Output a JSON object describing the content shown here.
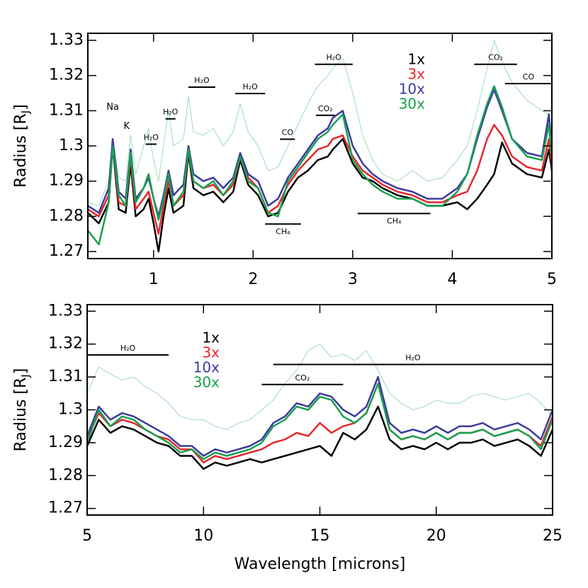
{
  "chart_data": [
    {
      "type": "line",
      "ylabel_parts": [
        "Radius [R",
        "J",
        "]"
      ],
      "xlim": [
        0.34,
        5
      ],
      "xticks": [
        1,
        2,
        3,
        4,
        5
      ],
      "ylim": [
        1.268,
        1.332
      ],
      "yticks": [
        1.27,
        1.28,
        1.29,
        1.3,
        1.31,
        1.32,
        1.33
      ],
      "x": [
        0.34,
        0.45,
        0.55,
        0.59,
        0.65,
        0.72,
        0.77,
        0.82,
        0.9,
        0.95,
        1.0,
        1.05,
        1.1,
        1.15,
        1.2,
        1.3,
        1.35,
        1.4,
        1.5,
        1.6,
        1.7,
        1.8,
        1.87,
        1.95,
        2.05,
        2.15,
        2.25,
        2.35,
        2.45,
        2.55,
        2.65,
        2.75,
        2.8,
        2.9,
        3.0,
        3.1,
        3.2,
        3.3,
        3.45,
        3.6,
        3.75,
        3.9,
        4.05,
        4.15,
        4.25,
        4.35,
        4.42,
        4.5,
        4.6,
        4.75,
        4.9,
        4.97,
        5.0
      ],
      "series": [
        {
          "color": "#86d3a6",
          "width": 0.8,
          "values": [
            1.284,
            1.283,
            1.29,
            1.302,
            1.291,
            1.29,
            1.303,
            1.292,
            1.3,
            1.305,
            1.296,
            1.29,
            1.3,
            1.31,
            1.3,
            1.302,
            1.314,
            1.304,
            1.303,
            1.305,
            1.3,
            1.304,
            1.312,
            1.304,
            1.3,
            1.293,
            1.294,
            1.3,
            1.306,
            1.312,
            1.317,
            1.32,
            1.322,
            1.325,
            1.315,
            1.303,
            1.296,
            1.292,
            1.29,
            1.293,
            1.29,
            1.291,
            1.296,
            1.3,
            1.31,
            1.322,
            1.33,
            1.324,
            1.318,
            1.313,
            1.31,
            1.309,
            1.303
          ]
        },
        {
          "name": "1x",
          "color": "#000000",
          "width": 2.5,
          "values": [
            1.281,
            1.278,
            1.284,
            1.3,
            1.282,
            1.281,
            1.295,
            1.28,
            1.282,
            1.285,
            1.278,
            1.27,
            1.28,
            1.288,
            1.281,
            1.283,
            1.298,
            1.288,
            1.286,
            1.287,
            1.284,
            1.287,
            1.296,
            1.289,
            1.286,
            1.28,
            1.281,
            1.287,
            1.291,
            1.293,
            1.296,
            1.297,
            1.299,
            1.302,
            1.295,
            1.291,
            1.29,
            1.288,
            1.286,
            1.285,
            1.283,
            1.283,
            1.284,
            1.282,
            1.285,
            1.289,
            1.292,
            1.301,
            1.295,
            1.292,
            1.291,
            1.299,
            1.293
          ]
        },
        {
          "name": "3x",
          "color": "#e8262c",
          "width": 2.5,
          "values": [
            1.282,
            1.28,
            1.286,
            1.301,
            1.284,
            1.283,
            1.297,
            1.282,
            1.285,
            1.287,
            1.281,
            1.275,
            1.283,
            1.29,
            1.283,
            1.286,
            1.299,
            1.29,
            1.288,
            1.289,
            1.286,
            1.289,
            1.297,
            1.291,
            1.288,
            1.281,
            1.283,
            1.289,
            1.293,
            1.296,
            1.299,
            1.3,
            1.302,
            1.303,
            1.297,
            1.293,
            1.291,
            1.289,
            1.287,
            1.286,
            1.284,
            1.284,
            1.286,
            1.287,
            1.293,
            1.302,
            1.306,
            1.303,
            1.297,
            1.294,
            1.293,
            1.302,
            1.295
          ]
        },
        {
          "name": "10x",
          "color": "#3b3b9e",
          "width": 2.5,
          "values": [
            1.283,
            1.281,
            1.288,
            1.302,
            1.287,
            1.285,
            1.299,
            1.285,
            1.288,
            1.291,
            1.285,
            1.28,
            1.286,
            1.293,
            1.286,
            1.289,
            1.3,
            1.292,
            1.29,
            1.291,
            1.288,
            1.291,
            1.298,
            1.292,
            1.29,
            1.283,
            1.285,
            1.291,
            1.295,
            1.299,
            1.303,
            1.305,
            1.308,
            1.31,
            1.3,
            1.295,
            1.292,
            1.29,
            1.288,
            1.287,
            1.285,
            1.285,
            1.288,
            1.292,
            1.302,
            1.311,
            1.316,
            1.31,
            1.302,
            1.298,
            1.297,
            1.309,
            1.299
          ]
        },
        {
          "name": "30x",
          "color": "#19a04f",
          "width": 2.5,
          "values": [
            1.276,
            1.272,
            1.284,
            1.3,
            1.286,
            1.283,
            1.298,
            1.284,
            1.288,
            1.292,
            1.285,
            1.279,
            1.285,
            1.292,
            1.283,
            1.287,
            1.299,
            1.29,
            1.288,
            1.29,
            1.286,
            1.29,
            1.297,
            1.29,
            1.288,
            1.281,
            1.28,
            1.29,
            1.294,
            1.298,
            1.302,
            1.304,
            1.306,
            1.309,
            1.296,
            1.292,
            1.289,
            1.287,
            1.285,
            1.285,
            1.283,
            1.283,
            1.287,
            1.292,
            1.303,
            1.312,
            1.317,
            1.311,
            1.302,
            1.297,
            1.296,
            1.306,
            1.297
          ]
        }
      ],
      "annotations": [
        {
          "label": "Na",
          "x": 0.59,
          "y": 1.311
        },
        {
          "label": "K",
          "x": 0.73,
          "y": 1.3055
        },
        {
          "label": "H₂O",
          "x_range": [
            0.92,
            1.03
          ],
          "y": 1.3005
        },
        {
          "label": "H₂O",
          "x_range": [
            1.12,
            1.22
          ],
          "y": 1.3077
        },
        {
          "label": "H₂O",
          "x_range": [
            1.35,
            1.62
          ],
          "y": 1.3167
        },
        {
          "label": "H₂O",
          "x_range": [
            1.82,
            2.12
          ],
          "y": 1.3149
        },
        {
          "label": "CO",
          "x_range": [
            2.27,
            2.42
          ],
          "y": 1.3019
        },
        {
          "label": "CH₄",
          "x_range": [
            2.12,
            2.48
          ],
          "y": 1.2778,
          "label_below": true
        },
        {
          "label": "CO₂",
          "x_range": [
            2.63,
            2.82
          ],
          "y": 1.3087
        },
        {
          "label": "H₂O",
          "x_range": [
            2.62,
            3.0
          ],
          "y": 1.3232
        },
        {
          "label": "CH₄",
          "x_range": [
            3.05,
            3.78
          ],
          "y": 1.2808,
          "label_below": true
        },
        {
          "label": "CO₂",
          "x_range": [
            4.22,
            4.65
          ],
          "y": 1.3232
        },
        {
          "label": "CO",
          "x_range": [
            4.53,
            5.0
          ],
          "y": 1.3177
        }
      ]
    },
    {
      "type": "line",
      "ylabel_parts": [
        "Radius [R",
        "J",
        "]"
      ],
      "xlabel": "Wavelength [microns]",
      "xlim": [
        5,
        25
      ],
      "xticks": [
        5,
        10,
        15,
        20,
        25
      ],
      "ylim": [
        1.268,
        1.332
      ],
      "yticks": [
        1.27,
        1.28,
        1.29,
        1.3,
        1.31,
        1.32,
        1.33
      ],
      "x": [
        5,
        5.5,
        6,
        6.5,
        7,
        7.5,
        8,
        8.5,
        9,
        9.5,
        10,
        10.5,
        11,
        11.5,
        12,
        12.5,
        13,
        13.5,
        14,
        14.5,
        15,
        15.5,
        16,
        16.5,
        17,
        17.5,
        18,
        18.5,
        19,
        19.5,
        20,
        20.5,
        21,
        21.5,
        22,
        22.5,
        23,
        23.5,
        24,
        24.5,
        25
      ],
      "series": [
        {
          "color": "#86d3a6",
          "width": 0.8,
          "values": [
            1.305,
            1.313,
            1.311,
            1.309,
            1.31,
            1.307,
            1.305,
            1.302,
            1.298,
            1.297,
            1.297,
            1.295,
            1.294,
            1.296,
            1.297,
            1.3,
            1.303,
            1.308,
            1.312,
            1.318,
            1.32,
            1.316,
            1.317,
            1.315,
            1.318,
            1.312,
            1.305,
            1.302,
            1.3,
            1.301,
            1.303,
            1.302,
            1.302,
            1.304,
            1.305,
            1.304,
            1.303,
            1.304,
            1.305,
            1.302,
            1.298
          ]
        },
        {
          "name": "1x",
          "color": "#000000",
          "width": 2.5,
          "values": [
            1.289,
            1.297,
            1.293,
            1.295,
            1.294,
            1.292,
            1.29,
            1.289,
            1.286,
            1.286,
            1.282,
            1.284,
            1.283,
            1.284,
            1.285,
            1.284,
            1.285,
            1.286,
            1.287,
            1.288,
            1.289,
            1.286,
            1.293,
            1.291,
            1.294,
            1.301,
            1.291,
            1.288,
            1.289,
            1.288,
            1.29,
            1.288,
            1.29,
            1.29,
            1.291,
            1.289,
            1.29,
            1.291,
            1.289,
            1.286,
            1.294
          ]
        },
        {
          "name": "3x",
          "color": "#e8262c",
          "width": 2.5,
          "values": [
            1.291,
            1.299,
            1.295,
            1.297,
            1.296,
            1.294,
            1.292,
            1.291,
            1.288,
            1.288,
            1.284,
            1.286,
            1.285,
            1.286,
            1.287,
            1.288,
            1.29,
            1.291,
            1.293,
            1.292,
            1.296,
            1.293,
            1.295,
            1.296,
            1.299,
            1.308,
            1.294,
            1.291,
            1.292,
            1.291,
            1.293,
            1.291,
            1.293,
            1.293,
            1.294,
            1.292,
            1.293,
            1.294,
            1.292,
            1.289,
            1.298
          ]
        },
        {
          "name": "10x",
          "color": "#3b3b9e",
          "width": 2.5,
          "values": [
            1.292,
            1.301,
            1.297,
            1.299,
            1.298,
            1.296,
            1.294,
            1.292,
            1.289,
            1.289,
            1.286,
            1.288,
            1.287,
            1.288,
            1.289,
            1.291,
            1.296,
            1.298,
            1.302,
            1.301,
            1.305,
            1.304,
            1.3,
            1.298,
            1.301,
            1.31,
            1.296,
            1.293,
            1.294,
            1.293,
            1.295,
            1.293,
            1.295,
            1.295,
            1.296,
            1.294,
            1.295,
            1.296,
            1.294,
            1.291,
            1.3
          ]
        },
        {
          "name": "30x",
          "color": "#19a04f",
          "width": 2.5,
          "values": [
            1.29,
            1.3,
            1.295,
            1.298,
            1.297,
            1.294,
            1.292,
            1.29,
            1.287,
            1.288,
            1.285,
            1.287,
            1.286,
            1.287,
            1.288,
            1.29,
            1.295,
            1.297,
            1.301,
            1.3,
            1.304,
            1.303,
            1.298,
            1.296,
            1.299,
            1.308,
            1.294,
            1.291,
            1.292,
            1.291,
            1.293,
            1.291,
            1.293,
            1.293,
            1.294,
            1.292,
            1.293,
            1.294,
            1.292,
            1.288,
            1.297
          ]
        }
      ],
      "annotations": [
        {
          "label": "H₂O",
          "x_range": [
            5,
            8.5
          ],
          "y": 1.3167
        },
        {
          "label": "H₂O",
          "x_range": [
            13,
            25
          ],
          "y": 1.3138
        },
        {
          "label": "CO₂",
          "x_range": [
            12.5,
            16
          ],
          "y": 1.3077
        }
      ]
    }
  ]
}
